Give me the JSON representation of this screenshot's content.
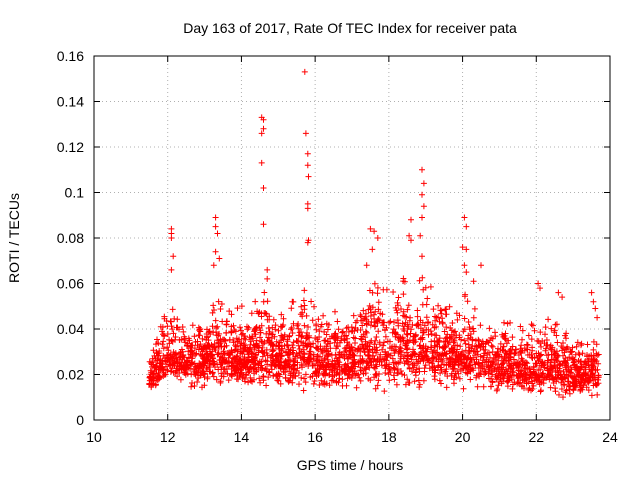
{
  "chart_data": {
    "type": "scatter",
    "title": "Day 163 of 2017, Rate Of TEC Index for receiver pata",
    "xlabel": "GPS time / hours",
    "ylabel": "ROTI / TECUs",
    "xlim": [
      10,
      24
    ],
    "ylim": [
      0,
      0.16
    ],
    "xticks": [
      10,
      12,
      14,
      16,
      18,
      20,
      22,
      24
    ],
    "yticks": [
      0,
      0.02,
      0.04,
      0.06,
      0.08,
      0.1,
      0.12,
      0.14,
      0.16
    ],
    "xtick_labels": [
      "10",
      "12",
      "14",
      "16",
      "18",
      "20",
      "22",
      "24"
    ],
    "ytick_labels": [
      "0",
      "0.02",
      "0.04",
      "0.06",
      "0.08",
      "0.1",
      "0.12",
      "0.14",
      "0.16"
    ],
    "grid": true,
    "marker": "plus",
    "color": "#ff0000",
    "envelope": {
      "x": [
        11.5,
        11.7,
        12.0,
        12.1,
        12.2,
        12.5,
        13.0,
        13.3,
        13.4,
        13.6,
        14.0,
        14.5,
        14.6,
        14.8,
        15.2,
        15.6,
        15.7,
        15.8,
        16.0,
        16.5,
        17.0,
        17.4,
        17.6,
        18.0,
        18.4,
        18.6,
        18.9,
        19.0,
        19.5,
        19.9,
        20.0,
        20.3,
        20.6,
        21.0,
        21.5,
        22.0,
        22.2,
        22.5,
        22.8,
        23.0,
        23.3,
        23.6,
        23.7
      ],
      "low": [
        0.008,
        0.01,
        0.012,
        0.012,
        0.012,
        0.012,
        0.01,
        0.012,
        0.012,
        0.012,
        0.012,
        0.012,
        0.012,
        0.012,
        0.012,
        0.01,
        0.012,
        0.012,
        0.012,
        0.012,
        0.012,
        0.012,
        0.01,
        0.01,
        0.01,
        0.01,
        0.012,
        0.012,
        0.012,
        0.012,
        0.012,
        0.012,
        0.01,
        0.01,
        0.01,
        0.008,
        0.008,
        0.008,
        0.008,
        0.008,
        0.008,
        0.008,
        0.01
      ],
      "high": [
        0.035,
        0.045,
        0.05,
        0.06,
        0.05,
        0.045,
        0.05,
        0.06,
        0.058,
        0.05,
        0.05,
        0.055,
        0.06,
        0.05,
        0.05,
        0.055,
        0.06,
        0.055,
        0.05,
        0.048,
        0.05,
        0.06,
        0.065,
        0.06,
        0.065,
        0.06,
        0.065,
        0.06,
        0.055,
        0.055,
        0.06,
        0.05,
        0.048,
        0.045,
        0.042,
        0.045,
        0.05,
        0.042,
        0.045,
        0.04,
        0.035,
        0.04,
        0.035
      ]
    },
    "points": [
      [
        12.1,
        0.084
      ],
      [
        12.1,
        0.082
      ],
      [
        12.1,
        0.08
      ],
      [
        12.15,
        0.072
      ],
      [
        12.1,
        0.066
      ],
      [
        13.3,
        0.089
      ],
      [
        13.3,
        0.085
      ],
      [
        13.35,
        0.082
      ],
      [
        13.3,
        0.074
      ],
      [
        13.4,
        0.071
      ],
      [
        13.25,
        0.068
      ],
      [
        14.55,
        0.133
      ],
      [
        14.6,
        0.132
      ],
      [
        14.6,
        0.128
      ],
      [
        14.55,
        0.126
      ],
      [
        14.55,
        0.113
      ],
      [
        14.6,
        0.102
      ],
      [
        14.6,
        0.086
      ],
      [
        14.7,
        0.066
      ],
      [
        14.7,
        0.062
      ],
      [
        15.72,
        0.153
      ],
      [
        15.75,
        0.126
      ],
      [
        15.8,
        0.117
      ],
      [
        15.8,
        0.112
      ],
      [
        15.82,
        0.107
      ],
      [
        15.8,
        0.095
      ],
      [
        15.8,
        0.093
      ],
      [
        15.82,
        0.079
      ],
      [
        15.8,
        0.078
      ],
      [
        17.5,
        0.084
      ],
      [
        17.6,
        0.083
      ],
      [
        17.7,
        0.08
      ],
      [
        17.55,
        0.075
      ],
      [
        17.4,
        0.068
      ],
      [
        18.6,
        0.088
      ],
      [
        18.55,
        0.081
      ],
      [
        18.6,
        0.079
      ],
      [
        18.9,
        0.11
      ],
      [
        18.95,
        0.104
      ],
      [
        18.9,
        0.099
      ],
      [
        18.95,
        0.094
      ],
      [
        18.9,
        0.089
      ],
      [
        18.85,
        0.081
      ],
      [
        18.9,
        0.072
      ],
      [
        20.05,
        0.089
      ],
      [
        20.1,
        0.085
      ],
      [
        20.0,
        0.076
      ],
      [
        20.1,
        0.075
      ],
      [
        20.05,
        0.068
      ],
      [
        20.1,
        0.065
      ],
      [
        20.5,
        0.068
      ],
      [
        20.3,
        0.061
      ],
      [
        22.05,
        0.06
      ],
      [
        22.1,
        0.058
      ],
      [
        22.6,
        0.056
      ],
      [
        22.7,
        0.054
      ],
      [
        23.5,
        0.056
      ],
      [
        23.55,
        0.052
      ],
      [
        23.6,
        0.049
      ],
      [
        23.65,
        0.045
      ]
    ]
  }
}
